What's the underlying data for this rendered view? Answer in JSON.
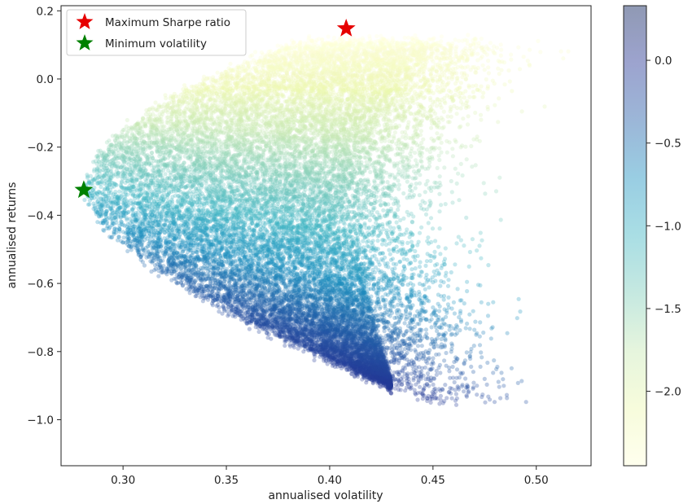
{
  "chart_data": {
    "type": "scatter",
    "title": "",
    "xlabel": "annualised volatility",
    "ylabel": "annualised returns",
    "xlim": [
      0.27,
      0.5265
    ],
    "ylim": [
      -1.135,
      0.215
    ],
    "x_ticks": [
      0.3,
      0.35,
      0.4,
      0.45,
      0.5
    ],
    "x_tick_labels": [
      "0.30",
      "0.35",
      "0.40",
      "0.45",
      "0.50"
    ],
    "y_ticks": [
      0.2,
      0.0,
      -0.2,
      -0.4,
      -0.6,
      -0.8,
      -1.0
    ],
    "y_tick_labels": [
      "0.2",
      "0.0",
      "−0.2",
      "−0.4",
      "−0.6",
      "−0.8",
      "−1.0"
    ],
    "grid": false,
    "legend_position": "top-left",
    "colormap": "YlGnBu",
    "marker_alpha": 0.3,
    "colorbar": {
      "range": [
        -2.45,
        0.33
      ],
      "ticks": [
        0.0,
        -0.5,
        -1.0,
        -1.5,
        -2.0
      ],
      "tick_labels": [
        "0.0",
        "−0.5",
        "−1.0",
        "−1.5",
        "−2.0"
      ]
    },
    "colormap_stops": [
      "#ffffd9",
      "#edf8b1",
      "#c7e9b4",
      "#7fcdbb",
      "#41b6c4",
      "#1d91c0",
      "#225ea8",
      "#253494",
      "#081d58"
    ],
    "point_cloud": {
      "description_of_region": "random portfolios; left boundary is efficient frontier",
      "frontier_min_vol": 0.281,
      "frontier_curvature_right": 1.7,
      "frontier_curvature_left": 2.8,
      "upper_return_envelope": 0.09,
      "lower_return_envelope": -0.9,
      "n_points": 22000
    },
    "highlight_points": [
      {
        "name": "Maximum Sharpe ratio",
        "x": 0.408,
        "y": 0.148,
        "color": "#e60000",
        "marker": "star"
      },
      {
        "name": "Minimum volatility",
        "x": 0.281,
        "y": -0.326,
        "color": "#008000",
        "marker": "star"
      }
    ]
  }
}
